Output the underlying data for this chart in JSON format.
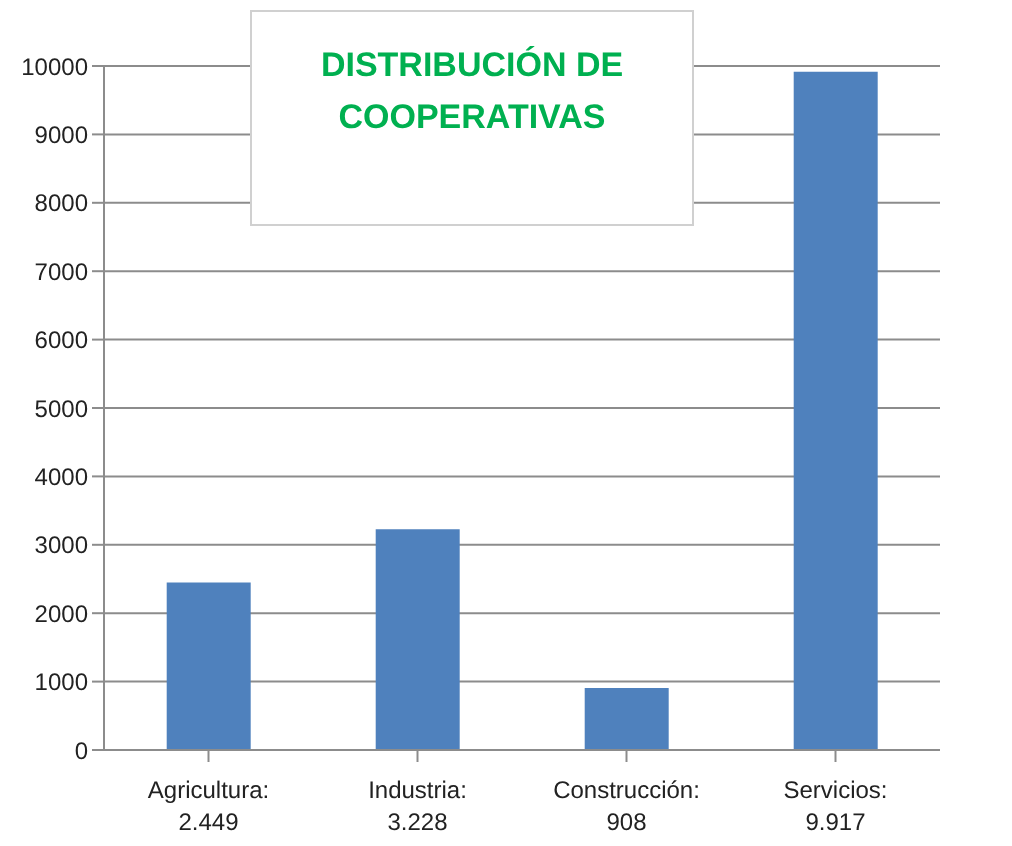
{
  "chart_data": {
    "type": "bar",
    "title": "DISTRIBUCIÓN DE COOPERATIVAS",
    "categories": [
      "Agricultura:\n2.449",
      "Industria:\n3.228",
      "Construcción:\n908",
      "Servicios:\n9.917"
    ],
    "values": [
      2449,
      3228,
      908,
      9917
    ],
    "color": "#4f81bd",
    "ylim": [
      0,
      10000
    ],
    "yticks": [
      0,
      1000,
      2000,
      3000,
      4000,
      5000,
      6000,
      7000,
      8000,
      9000,
      10000
    ],
    "grid": "y"
  }
}
